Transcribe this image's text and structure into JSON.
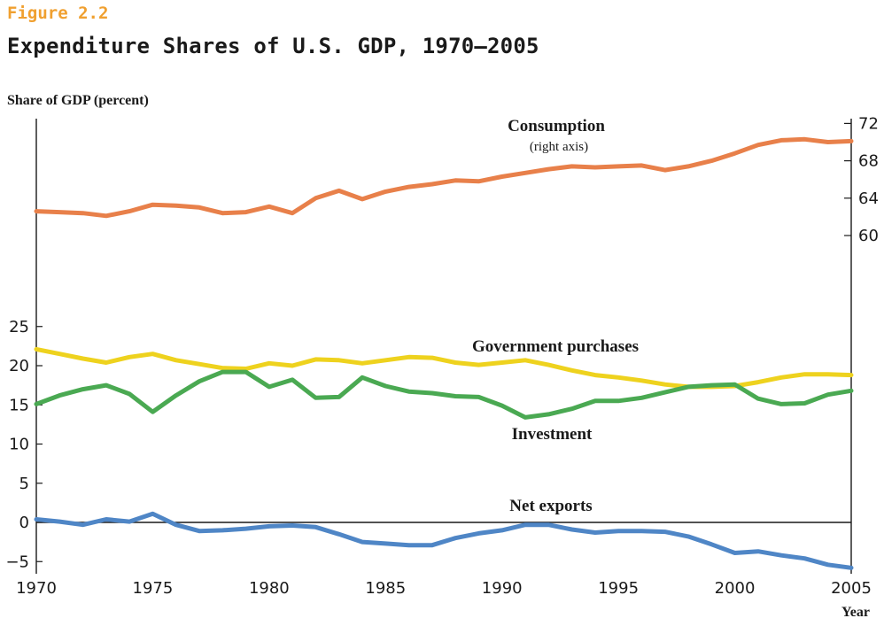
{
  "figure_label": "Figure 2.2",
  "chart_data": {
    "type": "line",
    "title": "Expenditure Shares of U.S. GDP, 1970–2005",
    "ylabel": "Share of GDP (percent)",
    "xlabel": "Year",
    "x": [
      1970,
      1971,
      1972,
      1973,
      1974,
      1975,
      1976,
      1977,
      1978,
      1979,
      1980,
      1981,
      1982,
      1983,
      1984,
      1985,
      1986,
      1987,
      1988,
      1989,
      1990,
      1991,
      1992,
      1993,
      1994,
      1995,
      1996,
      1997,
      1998,
      1999,
      2000,
      2001,
      2002,
      2003,
      2004,
      2005
    ],
    "xlim": [
      1970,
      2005
    ],
    "x_ticks": [
      "1970",
      "1975",
      "1980",
      "1985",
      "1990",
      "1995",
      "2000",
      "2005"
    ],
    "left_axis": {
      "ylim": [
        -6,
        25
      ],
      "ticks": [
        "−5",
        "0",
        "5",
        "10",
        "15",
        "20",
        "25"
      ]
    },
    "right_axis": {
      "ylim": [
        58,
        73
      ],
      "ticks": [
        "60",
        "64",
        "68",
        "72"
      ]
    },
    "colors": {
      "consumption": "#e8804a",
      "government": "#eed21e",
      "investment": "#4aa952",
      "net_exports": "#4f86c6",
      "zero_line": "#1a1a1a"
    },
    "series": [
      {
        "name": "Consumption",
        "note": "(right axis)",
        "axis": "right",
        "color_key": "consumption",
        "values": [
          62.6,
          62.5,
          62.4,
          62.1,
          62.6,
          63.3,
          63.2,
          63.0,
          62.4,
          62.5,
          63.1,
          62.4,
          64.0,
          64.8,
          63.9,
          64.7,
          65.2,
          65.5,
          65.9,
          65.8,
          66.3,
          66.7,
          67.1,
          67.4,
          67.3,
          67.4,
          67.5,
          67.0,
          67.4,
          68.0,
          68.8,
          69.7,
          70.2,
          70.3,
          70.0,
          70.1
        ]
      },
      {
        "name": "Government purchases",
        "axis": "left",
        "color_key": "government",
        "values": [
          22.1,
          21.5,
          20.9,
          20.4,
          21.1,
          21.5,
          20.7,
          20.2,
          19.7,
          19.6,
          20.3,
          20.0,
          20.8,
          20.7,
          20.3,
          20.7,
          21.1,
          21.0,
          20.4,
          20.1,
          20.4,
          20.7,
          20.1,
          19.4,
          18.8,
          18.5,
          18.1,
          17.6,
          17.3,
          17.3,
          17.4,
          17.9,
          18.5,
          18.9,
          18.9,
          18.8
        ]
      },
      {
        "name": "Investment",
        "axis": "left",
        "color_key": "investment",
        "values": [
          15.1,
          16.2,
          17.0,
          17.5,
          16.4,
          14.1,
          16.2,
          18.0,
          19.2,
          19.2,
          17.3,
          18.2,
          15.9,
          16.0,
          18.5,
          17.4,
          16.7,
          16.5,
          16.1,
          16.0,
          14.9,
          13.4,
          13.8,
          14.5,
          15.5,
          15.5,
          15.9,
          16.6,
          17.3,
          17.5,
          17.6,
          15.8,
          15.1,
          15.2,
          16.3,
          16.8
        ]
      },
      {
        "name": "Net exports",
        "axis": "left",
        "color_key": "net_exports",
        "values": [
          0.4,
          0.1,
          -0.3,
          0.4,
          0.1,
          1.1,
          -0.3,
          -1.1,
          -1.0,
          -0.8,
          -0.5,
          -0.4,
          -0.6,
          -1.5,
          -2.5,
          -2.7,
          -2.9,
          -2.9,
          -2.0,
          -1.4,
          -1.0,
          -0.3,
          -0.3,
          -0.9,
          -1.3,
          -1.1,
          -1.1,
          -1.2,
          -1.8,
          -2.8,
          -3.9,
          -3.7,
          -4.2,
          -4.6,
          -5.4,
          -5.8
        ]
      }
    ]
  }
}
